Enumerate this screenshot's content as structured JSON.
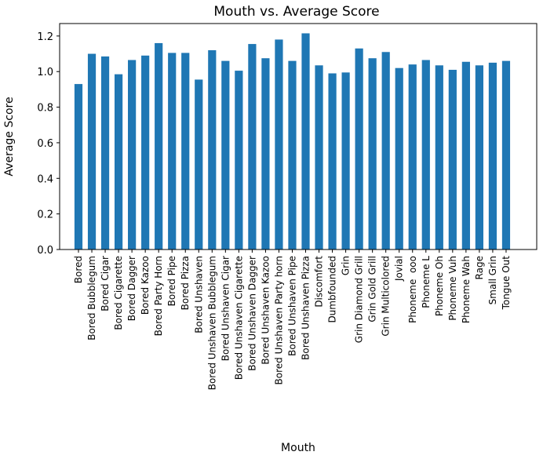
{
  "chart_data": {
    "type": "bar",
    "title": "Mouth vs. Average Score",
    "xlabel": "Mouth",
    "ylabel": "Average Score",
    "ylim": [
      0,
      1.27
    ],
    "yticks": [
      "0.0",
      "0.2",
      "0.4",
      "0.6",
      "0.8",
      "1.0",
      "1.2"
    ],
    "grid": false,
    "bar_color": "#1f77b4",
    "categories": [
      "Bored",
      "Bored Bubblegum",
      "Bored Cigar",
      "Bored Cigarette",
      "Bored Dagger",
      "Bored Kazoo",
      "Bored Party Horn",
      "Bored Pipe",
      "Bored Pizza",
      "Bored Unshaven",
      "Bored Unshaven Bubblegum",
      "Bored Unshaven Cigar",
      "Bored Unshaven Cigarette",
      "Bored Unshaven Dagger",
      "Bored Unshaven Kazoo",
      "Bored Unshaven Party horn",
      "Bored Unshaven Pipe",
      "Bored Unshaven Pizza",
      "Discomfort",
      "Dumbfounded",
      "Grin",
      "Grin Diamond Grill",
      "Grin Gold Grill",
      "Grin Multicolored",
      "Jovial",
      "Phoneme  ooo",
      "Phoneme L",
      "Phoneme Oh",
      "Phoneme Vuh",
      "Phoneme Wah",
      "Rage",
      "Small Grin",
      "Tongue Out"
    ],
    "values": [
      0.93,
      1.1,
      1.085,
      0.985,
      1.065,
      1.09,
      1.16,
      1.105,
      1.105,
      0.955,
      1.12,
      1.06,
      1.005,
      1.155,
      1.075,
      1.18,
      1.06,
      1.215,
      1.035,
      0.99,
      0.995,
      1.13,
      1.075,
      1.11,
      1.02,
      1.04,
      1.065,
      1.035,
      1.01,
      1.055,
      1.035,
      1.05,
      1.06
    ]
  }
}
